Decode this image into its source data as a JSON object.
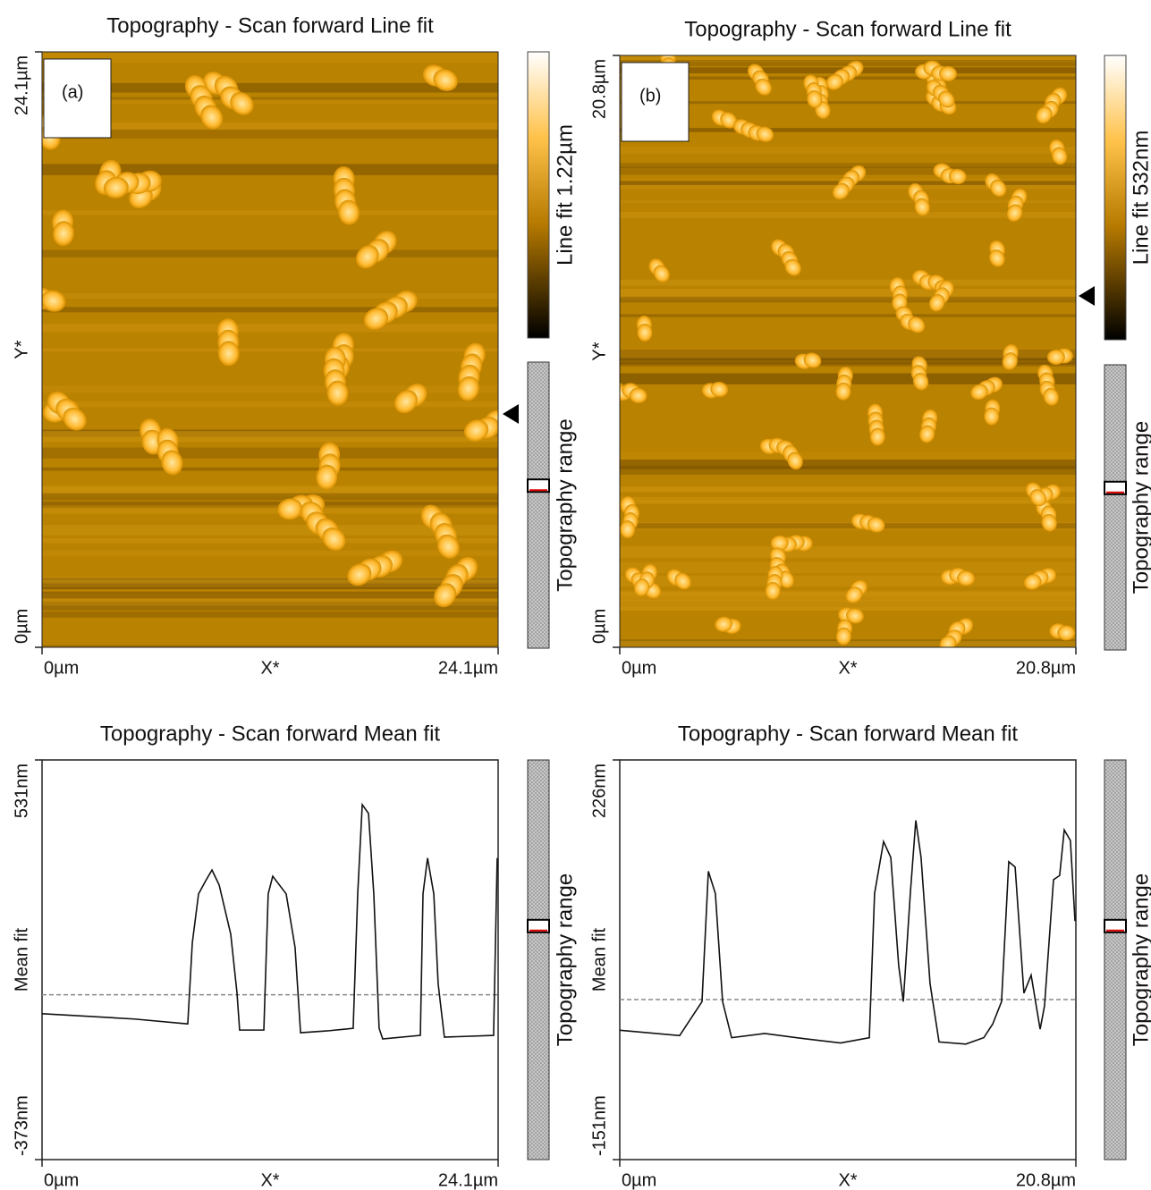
{
  "chart_data": [
    {
      "type": "image",
      "title": "Topography - Scan forward   Line fit",
      "panel_label": "(a)",
      "xlabel": "X*",
      "ylabel": "Y*",
      "xlim": [
        0,
        24.1
      ],
      "xticks": [
        {
          "value": 0,
          "label": "0µm"
        },
        {
          "value": 24.1,
          "label": "24.1µm"
        }
      ],
      "ylim": [
        0,
        24.1
      ],
      "yticks": [
        {
          "value": 0,
          "label": "0µm"
        },
        {
          "value": 24.1,
          "label": "24.1µm"
        }
      ],
      "colorbar_label": "Line fit 1.22µm",
      "range_label": "Topography range"
    },
    {
      "type": "image",
      "title": "Topography - Scan forward   Line fit",
      "panel_label": "(b)",
      "xlabel": "X*",
      "ylabel": "Y*",
      "xlim": [
        0,
        20.8
      ],
      "xticks": [
        {
          "value": 0,
          "label": "0µm"
        },
        {
          "value": 20.8,
          "label": "20.8µm"
        }
      ],
      "ylim": [
        0,
        20.8
      ],
      "yticks": [
        {
          "value": 0,
          "label": "0µm"
        },
        {
          "value": 20.8,
          "label": "20.8µm"
        }
      ],
      "colorbar_label": "Line fit 532nm",
      "range_label": "Topography range"
    },
    {
      "type": "line",
      "title": "Topography - Scan forward   Mean fit",
      "xlabel": "X*",
      "ylabel": "Mean fit",
      "color": "#111111",
      "reference_line": 0,
      "xlim": [
        0,
        24.1
      ],
      "xticks": [
        {
          "value": 0,
          "label": "0µm"
        },
        {
          "value": 24.1,
          "label": "24.1µm"
        }
      ],
      "ylim": [
        -373,
        531
      ],
      "yticks": [
        {
          "value": -373,
          "label": "-373nm"
        },
        {
          "value": 531,
          "label": "531nm"
        }
      ],
      "x": [
        0,
        2.5,
        4.87,
        7.7,
        7.94,
        8.27,
        8.65,
        8.98,
        9.36,
        9.97,
        10.3,
        10.44,
        11.72,
        11.95,
        12.19,
        12.9,
        13.37,
        13.66,
        15.03,
        16.44,
        16.68,
        16.92,
        17.25,
        17.53,
        17.81,
        18.0,
        19.99,
        20.13,
        20.37,
        20.7,
        20.93,
        21.26,
        23.86,
        24.05
      ],
      "values": [
        -43,
        -49,
        -55,
        -66,
        117,
        228,
        258,
        282,
        248,
        137,
        5,
        -80,
        -80,
        228,
        268,
        228,
        107,
        -86,
        -82,
        -76,
        228,
        430,
        410,
        228,
        -76,
        -100,
        -92,
        228,
        309,
        228,
        25,
        -96,
        -92,
        309
      ],
      "range_label": "Topography range"
    },
    {
      "type": "line",
      "title": "Topography - Scan forward   Mean fit",
      "xlabel": "X*",
      "ylabel": "Mean fit",
      "color": "#111111",
      "reference_line": 0,
      "xlim": [
        0,
        20.8
      ],
      "xticks": [
        {
          "value": 0,
          "label": "0µm"
        },
        {
          "value": 20.8,
          "label": "20.8µm"
        }
      ],
      "ylim": [
        -151,
        226
      ],
      "yticks": [
        {
          "value": -151,
          "label": "-151nm"
        },
        {
          "value": 226,
          "label": "226nm"
        }
      ],
      "x": [
        0,
        2.73,
        3.75,
        4.04,
        4.36,
        4.69,
        5.1,
        6.61,
        8.44,
        10.07,
        11.38,
        11.62,
        12.03,
        12.36,
        12.72,
        12.93,
        13.25,
        13.5,
        13.74,
        14.15,
        14.56,
        15.78,
        16.6,
        17.01,
        17.41,
        17.74,
        18.03,
        18.43,
        18.76,
        19.17,
        19.37,
        19.78,
        20.06,
        20.27,
        20.55,
        20.76
      ],
      "values": [
        -29,
        -34,
        -2,
        121,
        100,
        -2,
        -36,
        -32,
        -37,
        -41,
        -36,
        100,
        149,
        134,
        32,
        -2,
        100,
        169,
        134,
        15,
        -40,
        -42,
        -36,
        -23,
        -2,
        130,
        125,
        6,
        23,
        -28,
        -6,
        113,
        117,
        160,
        150,
        74
      ],
      "range_label": "Topography range"
    }
  ]
}
